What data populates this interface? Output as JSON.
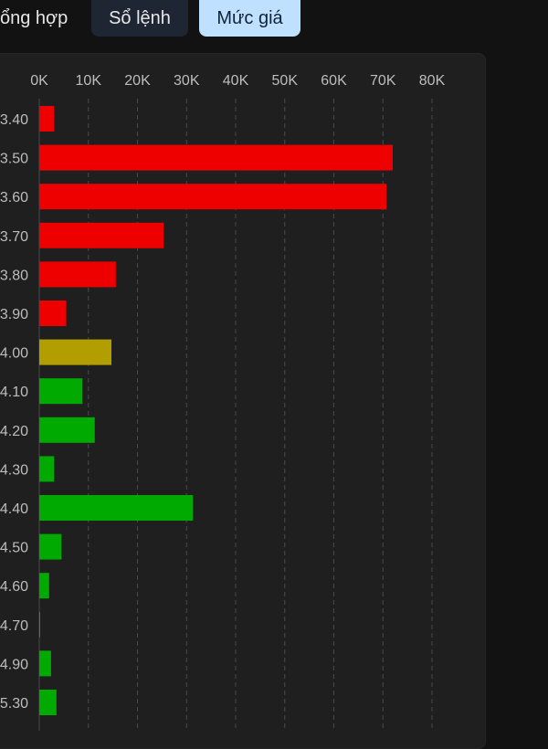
{
  "tabs": [
    {
      "label": "ổng hợp",
      "active": false
    },
    {
      "label": "Sổ lệnh",
      "active": false
    },
    {
      "label": "Mức giá",
      "active": true
    }
  ],
  "colors": {
    "decrease": "#ee0000",
    "reference": "#b29e00",
    "increase": "#00aa00",
    "grid": "#4a4a4a",
    "panel": "#1f1f1f"
  },
  "chart_data": {
    "type": "bar",
    "orientation": "horizontal",
    "categories": [
      ".3.40",
      ".3.50",
      ".3.60",
      ".3.70",
      ".3.80",
      ".3.90",
      ".4.00",
      ".4.10",
      ".4.20",
      ".4.30",
      ".4.40",
      ".4.50",
      ".4.60",
      ".4.70",
      ".4.90",
      ".5.30"
    ],
    "category_labels": [
      "3.40",
      "3.50",
      "3.60",
      "3.70",
      "3.80",
      "3.90",
      "4.00",
      "4.10",
      "4.20",
      "4.30",
      "4.40",
      "4.50",
      "4.60",
      "4.70",
      "4.90",
      "5.30"
    ],
    "values": [
      3000,
      72000,
      70700,
      25300,
      15600,
      5500,
      14700,
      8800,
      11300,
      3000,
      31300,
      4500,
      2000,
      100,
      2400,
      3500
    ],
    "bar_status": [
      "decrease",
      "decrease",
      "decrease",
      "decrease",
      "decrease",
      "decrease",
      "reference",
      "increase",
      "increase",
      "increase",
      "increase",
      "increase",
      "increase",
      "increase",
      "increase",
      "increase"
    ],
    "xlim": [
      0,
      80000
    ],
    "x_ticks": [
      "0K",
      "10K",
      "20K",
      "30K",
      "40K",
      "50K",
      "60K",
      "70K",
      "80K"
    ],
    "grid": true,
    "xlabel": "",
    "ylabel": "",
    "title": ""
  }
}
